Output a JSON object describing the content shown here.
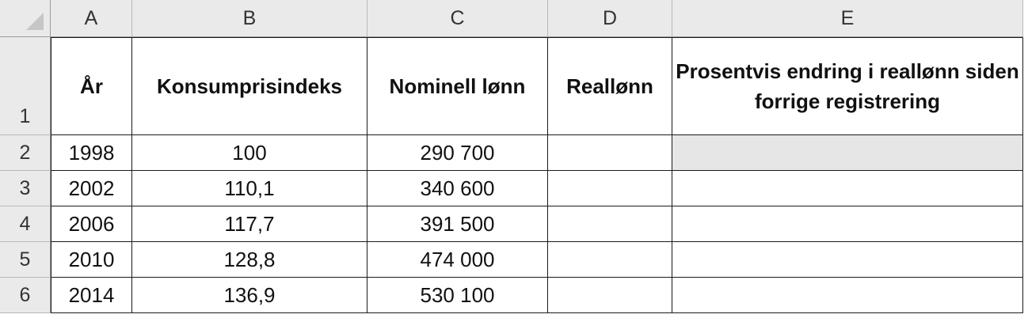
{
  "spreadsheet": {
    "column_headers": [
      "A",
      "B",
      "C",
      "D",
      "E"
    ],
    "row_numbers": [
      "1",
      "2",
      "3",
      "4",
      "5",
      "6"
    ],
    "header_row": {
      "year": "År",
      "cpi": "Konsumprisindeks",
      "nominal_wage": "Nominell lønn",
      "real_wage": "Reallønn",
      "pct_change": "Prosentvis endring i reallønn siden forrige registrering"
    },
    "rows": [
      {
        "year": "1998",
        "cpi": "100",
        "nominal_wage": "290 700",
        "real_wage": "",
        "pct_change": ""
      },
      {
        "year": "2002",
        "cpi": "110,1",
        "nominal_wage": "340 600",
        "real_wage": "",
        "pct_change": ""
      },
      {
        "year": "2006",
        "cpi": "117,7",
        "nominal_wage": "391 500",
        "real_wage": "",
        "pct_change": ""
      },
      {
        "year": "2010",
        "cpi": "128,8",
        "nominal_wage": "474 000",
        "real_wage": "",
        "pct_change": ""
      },
      {
        "year": "2014",
        "cpi": "136,9",
        "nominal_wage": "530 100",
        "real_wage": "",
        "pct_change": ""
      }
    ],
    "colors": {
      "header_bg": "#eaeaea",
      "shaded_cell": "#e6e6e6",
      "grid_line": "#1a1a1a"
    }
  }
}
